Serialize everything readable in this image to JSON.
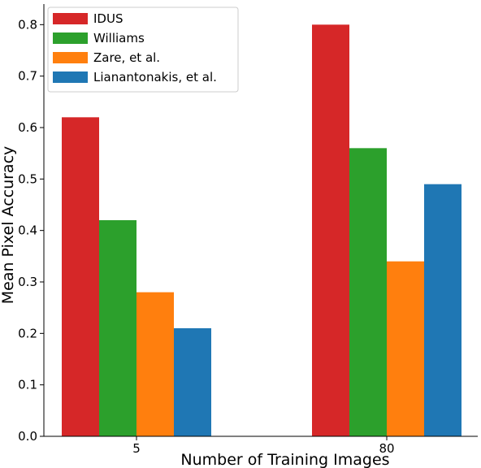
{
  "chart_data": {
    "type": "bar",
    "title": "",
    "xlabel": "Number of Training Images",
    "ylabel": "Mean Pixel Accuracy",
    "categories": [
      "5",
      "80"
    ],
    "ylim": [
      0,
      0.84
    ],
    "yticks": [
      "0.0",
      "0.1",
      "0.2",
      "0.3",
      "0.4",
      "0.5",
      "0.6",
      "0.7",
      "0.8"
    ],
    "grid": false,
    "legend_position": "top-left",
    "series": [
      {
        "name": "IDUS",
        "color": "#d62728",
        "values": [
          0.62,
          0.8
        ]
      },
      {
        "name": "Williams",
        "color": "#2ca02c",
        "values": [
          0.42,
          0.56
        ]
      },
      {
        "name": "Zare, et al.",
        "color": "#ff7f0e",
        "values": [
          0.28,
          0.34
        ]
      },
      {
        "name": "Lianantonakis, et al.",
        "color": "#1f77b4",
        "values": [
          0.21,
          0.49
        ]
      }
    ]
  }
}
